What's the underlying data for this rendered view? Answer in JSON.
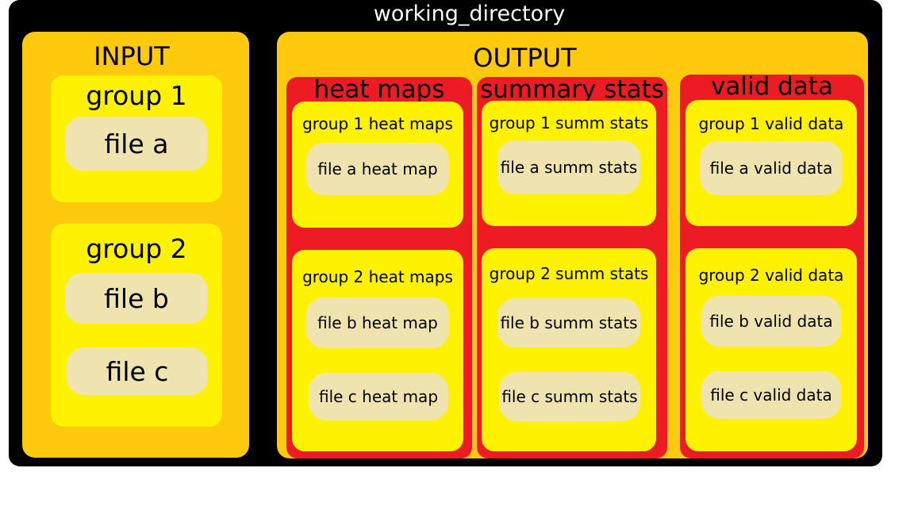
{
  "working_directory": {
    "label": "working_directory"
  },
  "input": {
    "title": "INPUT",
    "groups": [
      {
        "title": "group 1",
        "files": [
          "file a"
        ]
      },
      {
        "title": "group 2",
        "files": [
          "file b",
          "file c"
        ]
      }
    ]
  },
  "output": {
    "title": "OUTPUT",
    "categories": [
      {
        "title": "heat maps",
        "groups": [
          {
            "title": "group 1 heat maps",
            "files": [
              "file a heat map"
            ]
          },
          {
            "title": "group 2 heat maps",
            "files": [
              "file b heat map",
              "file c heat map"
            ]
          }
        ]
      },
      {
        "title": "summary stats",
        "groups": [
          {
            "title": "group 1 summ stats",
            "files": [
              "file a summ stats"
            ]
          },
          {
            "title": "group 2 summ stats",
            "files": [
              "file b summ stats",
              "file c summ stats"
            ]
          }
        ]
      },
      {
        "title": "valid data",
        "groups": [
          {
            "title": "group 1 valid data",
            "files": [
              "file a valid data"
            ]
          },
          {
            "title": "group 2 valid data",
            "files": [
              "file b valid data",
              "file c valid data"
            ]
          }
        ]
      }
    ]
  },
  "colors": {
    "background": "#000000",
    "panel": "#ffc90e",
    "group": "#fff200",
    "file": "#efe4b0",
    "output_category": "#ed1c24"
  }
}
